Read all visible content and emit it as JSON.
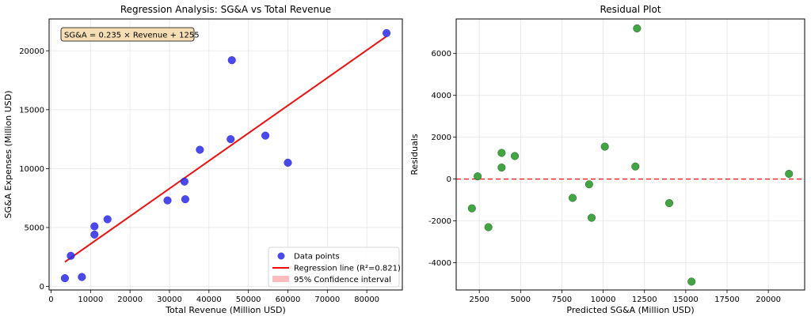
{
  "chart_data": [
    {
      "type": "scatter",
      "title": "Regression Analysis: SG&A vs Total Revenue",
      "xlabel": "Total Revenue (Million USD)",
      "ylabel": "SG&A Expenses (Million USD)",
      "xlim": [
        -500,
        89000
      ],
      "ylim": [
        -300,
        22700
      ],
      "xticks": [
        0,
        10000,
        20000,
        30000,
        40000,
        50000,
        60000,
        70000,
        80000
      ],
      "yticks": [
        0,
        5000,
        10000,
        15000,
        20000
      ],
      "grid": true,
      "points": [
        {
          "x": 3500,
          "y": 700
        },
        {
          "x": 5000,
          "y": 2600
        },
        {
          "x": 7800,
          "y": 800
        },
        {
          "x": 11000,
          "y": 4400
        },
        {
          "x": 11000,
          "y": 5100
        },
        {
          "x": 14300,
          "y": 5700
        },
        {
          "x": 29500,
          "y": 7300
        },
        {
          "x": 33800,
          "y": 8900
        },
        {
          "x": 34000,
          "y": 7400
        },
        {
          "x": 37700,
          "y": 11600
        },
        {
          "x": 45500,
          "y": 12500
        },
        {
          "x": 45800,
          "y": 19200
        },
        {
          "x": 54300,
          "y": 12800
        },
        {
          "x": 60000,
          "y": 10500
        },
        {
          "x": 85000,
          "y": 21500
        }
      ],
      "regression": {
        "slope": 0.235,
        "intercept": 1255,
        "x_range": [
          3500,
          85000
        ]
      },
      "equation_label": "SG&A = 0.235 × Revenue + 1255",
      "legend": [
        {
          "label": "Data points",
          "color": "#0000ee"
        },
        {
          "label": "Regression line (R²=0.821)",
          "color": "#ff0000"
        },
        {
          "label": "95% Confidence interval",
          "color": "#ffbcbc"
        }
      ],
      "legend_position": "lower-right",
      "series_color": "#2a2ae8",
      "line_color": "#ee1111"
    },
    {
      "type": "scatter",
      "title": "Residual Plot",
      "xlabel": "Predicted SG&A (Million USD)",
      "ylabel": "Residuals",
      "xlim": [
        1100,
        22200
      ],
      "ylim": [
        -5300,
        7650
      ],
      "xticks": [
        2500,
        5000,
        7500,
        10000,
        12500,
        15000,
        17500,
        20000
      ],
      "yticks": [
        -4000,
        -2000,
        0,
        2000,
        4000,
        6000
      ],
      "grid": true,
      "points": [
        {
          "x": 2050,
          "y": -1400
        },
        {
          "x": 2400,
          "y": 130
        },
        {
          "x": 3050,
          "y": -2300
        },
        {
          "x": 3850,
          "y": 1250
        },
        {
          "x": 3850,
          "y": 550
        },
        {
          "x": 4650,
          "y": 1100
        },
        {
          "x": 8150,
          "y": -900
        },
        {
          "x": 9150,
          "y": -250
        },
        {
          "x": 9300,
          "y": -1850
        },
        {
          "x": 10100,
          "y": 1550
        },
        {
          "x": 11950,
          "y": 600
        },
        {
          "x": 12050,
          "y": 7200
        },
        {
          "x": 14000,
          "y": -1150
        },
        {
          "x": 15350,
          "y": -4900
        },
        {
          "x": 21250,
          "y": 250
        }
      ],
      "reference_line": {
        "y": 0,
        "style": "dashed"
      },
      "series_color": "#2e9a2e",
      "line_color": "#ee1111"
    }
  ]
}
